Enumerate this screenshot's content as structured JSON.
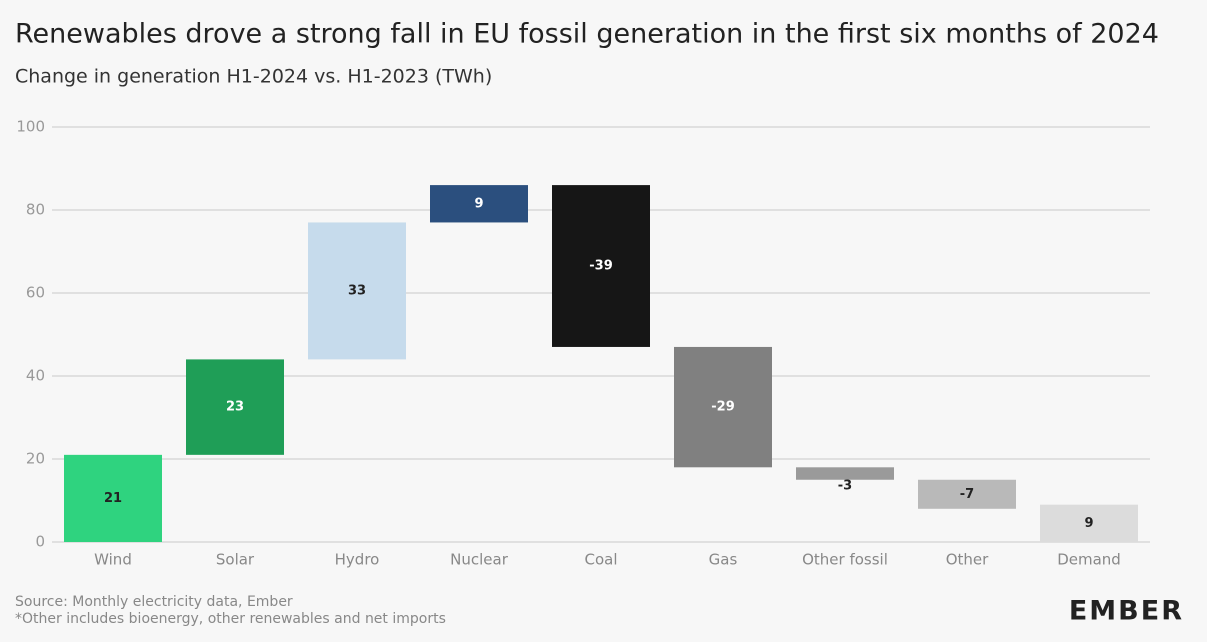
{
  "chart_data": {
    "type": "waterfall",
    "title": "Renewables drove a strong fall in EU fossil generation in the first six months of 2024",
    "subtitle": "Change in generation H1-2024 vs. H1-2023 (TWh)",
    "categories": [
      "Wind",
      "Solar",
      "Hydro",
      "Nuclear",
      "Coal",
      "Gas",
      "Other fossil",
      "Other",
      "Demand"
    ],
    "values": [
      21,
      23,
      33,
      9,
      -39,
      -29,
      -3,
      -7,
      9
    ],
    "colors": [
      "#2fd37f",
      "#1f9e57",
      "#c6dbec",
      "#2b4f7e",
      "#161616",
      "#808080",
      "#9a9a9a",
      "#b9b9b9",
      "#dcdcdc"
    ],
    "ylim": [
      0,
      100
    ],
    "yticks": [
      0,
      20,
      40,
      60,
      80,
      100
    ],
    "grid": true,
    "source": "Source: Monthly electricity data, Ember",
    "note": "*Other includes bioenergy, other renewables and net imports",
    "logo": "EMBER"
  }
}
